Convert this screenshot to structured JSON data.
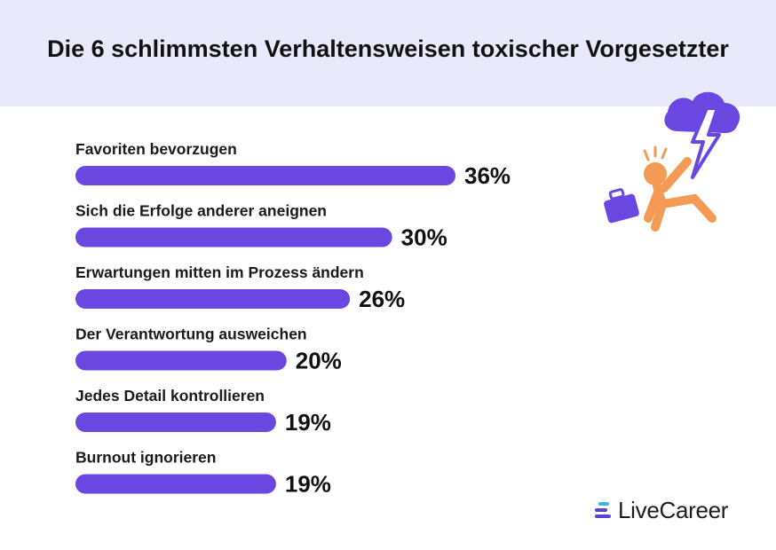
{
  "header": {
    "title": "Die 6 schlimmsten Verhaltensweisen toxischer Vorgesetzter"
  },
  "chart_data": {
    "type": "bar",
    "orientation": "horizontal",
    "title": "Die 6 schlimmsten Verhaltensweisen toxischer Vorgesetzter",
    "xlabel": "",
    "ylabel": "",
    "categories": [
      "Favoriten bevorzugen",
      "Sich die Erfolge anderer aneignen",
      "Erwartungen mitten im Prozess ändern",
      "Der Verantwortung ausweichen",
      "Jedes Detail kontrollieren",
      "Burnout ignorieren"
    ],
    "values": [
      36,
      30,
      26,
      20,
      19,
      19
    ],
    "value_labels": [
      "36%",
      "30%",
      "26%",
      "20%",
      "19%",
      "19%"
    ],
    "unit": "%",
    "grid": false,
    "legend": "none",
    "bar_color": "#6a47e0"
  },
  "brand": {
    "name": "LiveCareer",
    "accent_colors": [
      "#5b3fd6",
      "#3fb6e8",
      "#f4a261"
    ]
  },
  "illustration": {
    "icons": [
      "storm-cloud-icon",
      "lightning-bolt-icon",
      "falling-person-icon",
      "briefcase-icon"
    ],
    "colors": {
      "purple": "#6a47e0",
      "orange": "#f39a55"
    }
  }
}
